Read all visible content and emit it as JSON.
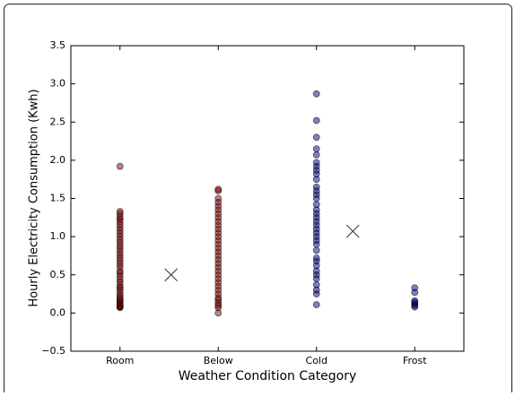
{
  "chart_data": {
    "type": "strip",
    "xlabel": "Weather Condition Category",
    "ylabel": "Hourly Electricity Consumption (Kwh)",
    "xlim": [
      0,
      4
    ],
    "xticks": [
      {
        "value": 0.5,
        "label": "Room"
      },
      {
        "value": 1.5,
        "label": "Below"
      },
      {
        "value": 2.5,
        "label": "Cold"
      },
      {
        "value": 3.5,
        "label": "Frost"
      }
    ],
    "ylim": [
      -0.5,
      3.5
    ],
    "yticks": [
      {
        "value": -0.5,
        "label": "−0.5"
      },
      {
        "value": 0,
        "label": "0.0"
      },
      0.5,
      {
        "value": 1,
        "label": "1.0"
      },
      1.5,
      {
        "value": 2,
        "label": "2.0"
      },
      2.5,
      {
        "value": 3,
        "label": "3.0"
      },
      3.5
    ],
    "series": [
      {
        "x": 0.5,
        "color": "#800000",
        "values": [
          0.07,
          0.08,
          0.09,
          0.1,
          0.12,
          0.14,
          0.16,
          0.18,
          0.2,
          0.23,
          0.26,
          0.3,
          0.33,
          0.36,
          0.4,
          0.44,
          0.48,
          0.52,
          0.55,
          0.6,
          0.64,
          0.68,
          0.72,
          0.76,
          0.8,
          0.84,
          0.88,
          0.92,
          0.96,
          1.0,
          1.04,
          1.08,
          1.12,
          1.16,
          1.2,
          1.23,
          1.26,
          1.3,
          1.33,
          1.92
        ]
      },
      {
        "x": 1.5,
        "color": "#800000",
        "values": [
          0.0,
          0.07,
          0.1,
          0.13,
          0.17,
          0.2,
          0.25,
          0.3,
          0.35,
          0.4,
          0.45,
          0.5,
          0.55,
          0.6,
          0.65,
          0.7,
          0.75,
          0.8,
          0.85,
          0.9,
          0.95,
          1.0,
          1.05,
          1.1,
          1.15,
          1.2,
          1.25,
          1.3,
          1.35,
          1.4,
          1.45,
          1.5,
          1.6,
          1.62
        ]
      },
      {
        "x": 2.5,
        "color": "#000080",
        "values": [
          0.11,
          0.25,
          0.3,
          0.37,
          0.45,
          0.5,
          0.55,
          0.62,
          0.68,
          0.72,
          0.82,
          0.9,
          0.95,
          1.0,
          1.05,
          1.1,
          1.15,
          1.2,
          1.25,
          1.3,
          1.35,
          1.42,
          1.5,
          1.55,
          1.6,
          1.65,
          1.75,
          1.82,
          1.87,
          1.92,
          1.97,
          2.07,
          2.15,
          2.3,
          2.52,
          2.87
        ]
      },
      {
        "x": 3.5,
        "color": "#000080",
        "values": [
          0.08,
          0.1,
          0.12,
          0.14,
          0.16,
          0.27,
          0.33
        ]
      }
    ],
    "markers": {
      "x": [
        1.02,
        2.87
      ],
      "values": [
        0.5,
        1.07
      ],
      "color": "#333333"
    }
  }
}
